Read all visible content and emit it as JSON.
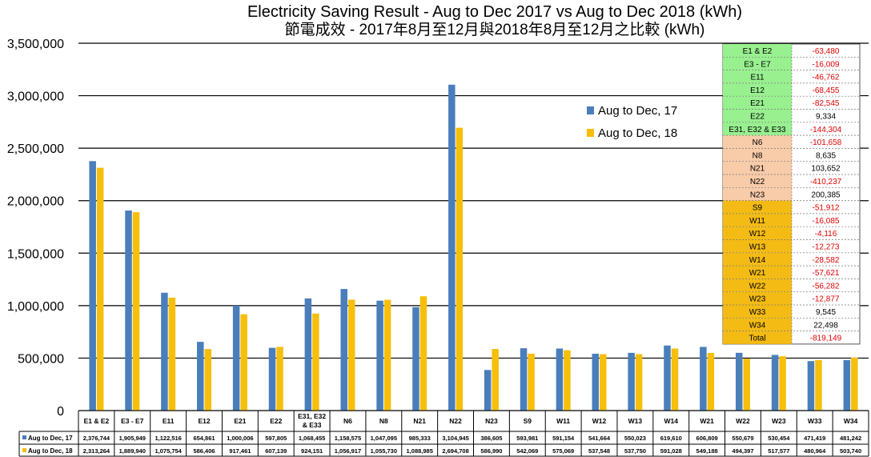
{
  "chart_data": {
    "type": "bar",
    "title": "Electricity Saving Result - Aug to Dec 2017 vs Aug to Dec 2018 (kWh)",
    "subtitle": "節電成效 - 2017年8月至12月與2018年8月至12月之比較 (kWh)",
    "categories": [
      "E1 & E2",
      "E3 - E7",
      "E11",
      "E12",
      "E21",
      "E22",
      "E31, E32 & E33",
      "N6",
      "N8",
      "N21",
      "N22",
      "N23",
      "S9",
      "W11",
      "W12",
      "W13",
      "W14",
      "W21",
      "W22",
      "W23",
      "W33",
      "W34"
    ],
    "category_labels": [
      "E1 & E2",
      "E3 - E7",
      "E11",
      "E12",
      "E21",
      "E22",
      "E31, E32|& E33",
      "N6",
      "N8",
      "N21",
      "N22",
      "N23",
      "S9",
      "W11",
      "W12",
      "W13",
      "W14",
      "W21",
      "W22",
      "W23",
      "W33",
      "W34"
    ],
    "series": [
      {
        "name": "Aug to Dec, 17",
        "color": "#4a7ebb",
        "values": [
          2376744,
          1905949,
          1122516,
          654861,
          1000006,
          597805,
          1068455,
          1158575,
          1047095,
          985333,
          3104945,
          386605,
          593981,
          591154,
          541664,
          550023,
          619610,
          606809,
          550679,
          530454,
          471419,
          481242
        ],
        "table_values": [
          "2,376,744",
          "1,905,949",
          "1,122,516",
          "654,861",
          "1,000,006",
          "597,805",
          "1,068,455",
          "1,158,575",
          "1,047,095",
          "985,333",
          "3,104,945",
          "386,605",
          "593,981",
          "591,154",
          "541,664",
          "550,023",
          "619,610",
          "606,809",
          "550,679",
          "530,454",
          "471,419",
          "481,242"
        ]
      },
      {
        "name": "Aug to Dec, 18",
        "color": "#f6bf0b",
        "values": [
          2313264,
          1889940,
          1075754,
          586406,
          917461,
          607139,
          924151,
          1056917,
          1055730,
          1088985,
          2694708,
          586990,
          542069,
          575069,
          537548,
          537750,
          591028,
          549188,
          494397,
          517577,
          480964,
          503740
        ],
        "table_values": [
          "2,313,264",
          "1,889,940",
          "1,075,754",
          "586,406",
          "917,461",
          "607,139",
          "924,151",
          "1,056,917",
          "1,055,730",
          "1,088,985",
          "2,694,708",
          "586,990",
          "542,069",
          "575,069",
          "537,548",
          "537,750",
          "591,028",
          "549,188",
          "494,397",
          "517,577",
          "480,964",
          "503,740"
        ]
      }
    ],
    "ylim": [
      0,
      3500000
    ],
    "yticks": [
      0,
      500000,
      1000000,
      1500000,
      2000000,
      2500000,
      3000000,
      3500000
    ],
    "ytick_labels": [
      "0",
      "500,000",
      "1,000,000",
      "1,500,000",
      "2,000,000",
      "2,500,000",
      "3,000,000",
      "3,500,000"
    ],
    "grid": true,
    "legend_position": "top-right",
    "inset_table": {
      "rows": [
        {
          "label": "E1 & E2",
          "value": "-63,480",
          "group": "green",
          "negative": true
        },
        {
          "label": "E3 - E7",
          "value": "-16,009",
          "group": "green",
          "negative": true
        },
        {
          "label": "E11",
          "value": "-46,762",
          "group": "green",
          "negative": true
        },
        {
          "label": "E12",
          "value": "-68,455",
          "group": "green",
          "negative": true
        },
        {
          "label": "E21",
          "value": "-82,545",
          "group": "green",
          "negative": true
        },
        {
          "label": "E22",
          "value": "9,334",
          "group": "green",
          "negative": false
        },
        {
          "label": "E31, E32 & E33",
          "value": "-144,304",
          "group": "green",
          "negative": true
        },
        {
          "label": "N6",
          "value": "-101,658",
          "group": "peach",
          "negative": true
        },
        {
          "label": "N8",
          "value": "8,635",
          "group": "peach",
          "negative": false
        },
        {
          "label": "N21",
          "value": "103,652",
          "group": "peach",
          "negative": false
        },
        {
          "label": "N22",
          "value": "-410,237",
          "group": "peach",
          "negative": true
        },
        {
          "label": "N23",
          "value": "200,385",
          "group": "peach",
          "negative": false
        },
        {
          "label": "S9",
          "value": "-51,912",
          "group": "orange",
          "negative": true
        },
        {
          "label": "W11",
          "value": "-16,085",
          "group": "orange",
          "negative": true
        },
        {
          "label": "W12",
          "value": "-4,116",
          "group": "orange",
          "negative": true
        },
        {
          "label": "W13",
          "value": "-12,273",
          "group": "orange",
          "negative": true
        },
        {
          "label": "W14",
          "value": "-28,582",
          "group": "orange",
          "negative": true
        },
        {
          "label": "W21",
          "value": "-57,621",
          "group": "orange",
          "negative": true
        },
        {
          "label": "W22",
          "value": "-56,282",
          "group": "orange",
          "negative": true
        },
        {
          "label": "W23",
          "value": "-12,877",
          "group": "orange",
          "negative": true
        },
        {
          "label": "W33",
          "value": "9,545",
          "group": "orange",
          "negative": false
        },
        {
          "label": "W34",
          "value": "22,498",
          "group": "orange",
          "negative": false
        },
        {
          "label": "Total",
          "value": "-819,149",
          "group": "orange",
          "negative": true
        }
      ],
      "group_colors": {
        "green": "#98f08f",
        "peach": "#f8cba9",
        "orange": "#f3bb14"
      },
      "negative_color": "#e00000"
    }
  }
}
